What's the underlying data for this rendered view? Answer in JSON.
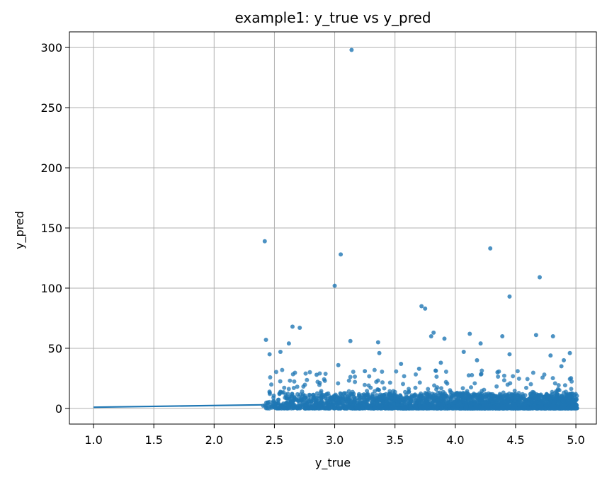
{
  "chart_data": {
    "type": "scatter",
    "title": "example1: y_true vs y_pred",
    "xlabel": "y_true",
    "ylabel": "y_pred",
    "xlim": [
      0.8,
      5.17
    ],
    "ylim": [
      -13,
      313
    ],
    "xticks": [
      1.0,
      1.5,
      2.0,
      2.5,
      3.0,
      3.5,
      4.0,
      4.5,
      5.0
    ],
    "xtick_labels": [
      "1.0",
      "1.5",
      "2.0",
      "2.5",
      "3.0",
      "3.5",
      "4.0",
      "4.5",
      "5.0"
    ],
    "yticks": [
      0,
      50,
      100,
      150,
      200,
      250,
      300
    ],
    "ytick_labels": [
      "0",
      "50",
      "100",
      "150",
      "200",
      "250",
      "300"
    ],
    "grid": true,
    "colors": {
      "series": "#1f77b4"
    },
    "series": [
      {
        "type": "scatter",
        "dense_band": {
          "x_range": [
            2.4,
            5.01
          ],
          "y_range": [
            0,
            12
          ]
        },
        "points": [
          [
            2.42,
            139
          ],
          [
            3.05,
            128
          ],
          [
            3.14,
            298
          ],
          [
            4.29,
            133
          ],
          [
            4.7,
            109
          ],
          [
            3.0,
            102
          ],
          [
            4.45,
            93
          ],
          [
            3.72,
            85
          ],
          [
            3.75,
            83
          ],
          [
            3.82,
            63
          ],
          [
            2.65,
            68
          ],
          [
            2.71,
            67
          ],
          [
            2.43,
            57
          ],
          [
            2.62,
            54
          ],
          [
            2.55,
            47
          ],
          [
            2.46,
            45
          ],
          [
            3.13,
            56
          ],
          [
            3.36,
            55
          ],
          [
            3.37,
            46
          ],
          [
            3.8,
            60
          ],
          [
            3.91,
            58
          ],
          [
            4.07,
            47
          ],
          [
            4.12,
            62
          ],
          [
            4.21,
            54
          ],
          [
            4.39,
            60
          ],
          [
            4.45,
            45
          ],
          [
            4.67,
            61
          ],
          [
            4.79,
            44
          ],
          [
            4.81,
            60
          ],
          [
            4.9,
            40
          ],
          [
            4.95,
            46
          ],
          [
            3.03,
            36
          ],
          [
            3.7,
            33
          ],
          [
            3.88,
            38
          ],
          [
            4.18,
            40
          ],
          [
            4.88,
            35
          ],
          [
            2.85,
            28
          ],
          [
            3.25,
            31
          ],
          [
            3.55,
            37
          ],
          [
            4.35,
            30
          ]
        ]
      },
      {
        "type": "line",
        "x": [
          1.0,
          2.4
        ],
        "y": [
          1,
          3
        ]
      }
    ]
  }
}
